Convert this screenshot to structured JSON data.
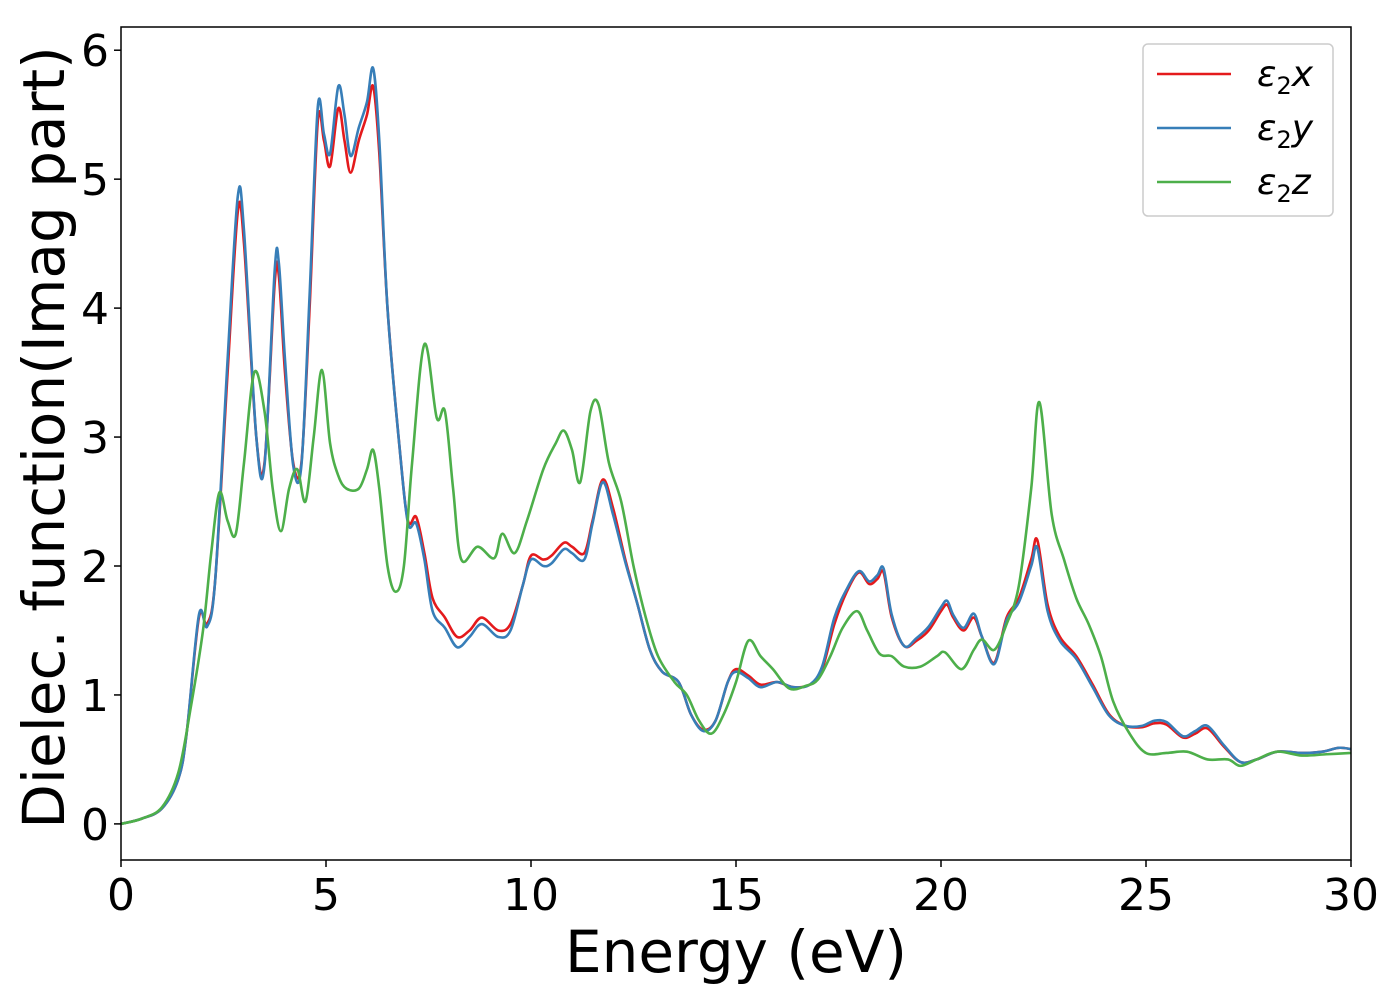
{
  "chart_data": {
    "type": "line",
    "xlabel": "Energy (eV)",
    "ylabel": "Dielec. function(Imag part)",
    "xlim": [
      0,
      30
    ],
    "ylim": [
      -0.28,
      6.18
    ],
    "xticks": [
      0,
      5,
      10,
      15,
      20,
      25,
      30
    ],
    "xtick_labels": [
      "0",
      "5",
      "10",
      "15",
      "20",
      "25",
      "30"
    ],
    "yticks": [
      0,
      1,
      2,
      3,
      4,
      5,
      6
    ],
    "ytick_labels": [
      "0",
      "1",
      "2",
      "3",
      "4",
      "5",
      "6"
    ],
    "grid": false,
    "legend_position": "top-right",
    "series": [
      {
        "name": "ε2x",
        "legend_base": "ε",
        "legend_sub": "2",
        "legend_tail": "x",
        "color": "#e41a1c",
        "points": [
          [
            0,
            0.0
          ],
          [
            0.5,
            0.04
          ],
          [
            1.0,
            0.12
          ],
          [
            1.4,
            0.35
          ],
          [
            1.6,
            0.7
          ],
          [
            1.9,
            1.6
          ],
          [
            2.1,
            1.55
          ],
          [
            2.3,
            1.9
          ],
          [
            2.6,
            3.5
          ],
          [
            2.85,
            4.75
          ],
          [
            3.0,
            4.5
          ],
          [
            3.3,
            3.0
          ],
          [
            3.5,
            2.8
          ],
          [
            3.75,
            4.2
          ],
          [
            3.85,
            4.25
          ],
          [
            4.0,
            3.5
          ],
          [
            4.2,
            2.8
          ],
          [
            4.4,
            2.8
          ],
          [
            4.6,
            4.0
          ],
          [
            4.8,
            5.45
          ],
          [
            4.95,
            5.3
          ],
          [
            5.1,
            5.1
          ],
          [
            5.3,
            5.55
          ],
          [
            5.45,
            5.3
          ],
          [
            5.6,
            5.05
          ],
          [
            5.8,
            5.3
          ],
          [
            6.0,
            5.5
          ],
          [
            6.15,
            5.72
          ],
          [
            6.3,
            5.2
          ],
          [
            6.5,
            4.0
          ],
          [
            6.8,
            2.9
          ],
          [
            7.0,
            2.35
          ],
          [
            7.2,
            2.38
          ],
          [
            7.4,
            2.1
          ],
          [
            7.6,
            1.75
          ],
          [
            7.9,
            1.6
          ],
          [
            8.2,
            1.45
          ],
          [
            8.5,
            1.5
          ],
          [
            8.8,
            1.6
          ],
          [
            9.2,
            1.5
          ],
          [
            9.5,
            1.55
          ],
          [
            9.8,
            1.85
          ],
          [
            10.0,
            2.08
          ],
          [
            10.3,
            2.05
          ],
          [
            10.5,
            2.08
          ],
          [
            10.8,
            2.18
          ],
          [
            11.0,
            2.15
          ],
          [
            11.3,
            2.1
          ],
          [
            11.5,
            2.35
          ],
          [
            11.75,
            2.67
          ],
          [
            12.0,
            2.45
          ],
          [
            12.3,
            2.05
          ],
          [
            12.6,
            1.7
          ],
          [
            12.9,
            1.35
          ],
          [
            13.2,
            1.18
          ],
          [
            13.6,
            1.1
          ],
          [
            13.9,
            0.85
          ],
          [
            14.2,
            0.73
          ],
          [
            14.5,
            0.8
          ],
          [
            14.8,
            1.1
          ],
          [
            15.0,
            1.2
          ],
          [
            15.3,
            1.15
          ],
          [
            15.6,
            1.08
          ],
          [
            16.0,
            1.1
          ],
          [
            16.4,
            1.06
          ],
          [
            16.8,
            1.08
          ],
          [
            17.1,
            1.2
          ],
          [
            17.4,
            1.55
          ],
          [
            17.7,
            1.8
          ],
          [
            18.0,
            1.95
          ],
          [
            18.25,
            1.86
          ],
          [
            18.45,
            1.9
          ],
          [
            18.6,
            1.95
          ],
          [
            18.8,
            1.6
          ],
          [
            19.1,
            1.38
          ],
          [
            19.4,
            1.42
          ],
          [
            19.7,
            1.5
          ],
          [
            20.0,
            1.65
          ],
          [
            20.15,
            1.7
          ],
          [
            20.3,
            1.6
          ],
          [
            20.55,
            1.5
          ],
          [
            20.8,
            1.6
          ],
          [
            21.0,
            1.45
          ],
          [
            21.3,
            1.25
          ],
          [
            21.6,
            1.6
          ],
          [
            21.9,
            1.75
          ],
          [
            22.2,
            2.05
          ],
          [
            22.35,
            2.2
          ],
          [
            22.6,
            1.7
          ],
          [
            22.9,
            1.45
          ],
          [
            23.3,
            1.3
          ],
          [
            23.7,
            1.08
          ],
          [
            24.1,
            0.85
          ],
          [
            24.5,
            0.76
          ],
          [
            24.9,
            0.75
          ],
          [
            25.2,
            0.78
          ],
          [
            25.5,
            0.77
          ],
          [
            25.9,
            0.67
          ],
          [
            26.2,
            0.7
          ],
          [
            26.5,
            0.74
          ],
          [
            26.9,
            0.6
          ],
          [
            27.3,
            0.48
          ],
          [
            27.7,
            0.5
          ],
          [
            28.2,
            0.56
          ],
          [
            28.8,
            0.55
          ],
          [
            29.3,
            0.56
          ],
          [
            29.7,
            0.59
          ],
          [
            30.0,
            0.58
          ]
        ]
      },
      {
        "name": "ε2y",
        "legend_base": "ε",
        "legend_sub": "2",
        "legend_tail": "y",
        "color": "#377eb8",
        "points": [
          [
            0,
            0.0
          ],
          [
            0.5,
            0.04
          ],
          [
            1.0,
            0.12
          ],
          [
            1.4,
            0.35
          ],
          [
            1.6,
            0.7
          ],
          [
            1.9,
            1.62
          ],
          [
            2.1,
            1.53
          ],
          [
            2.3,
            1.9
          ],
          [
            2.6,
            3.6
          ],
          [
            2.85,
            4.87
          ],
          [
            3.0,
            4.6
          ],
          [
            3.3,
            3.0
          ],
          [
            3.5,
            2.78
          ],
          [
            3.75,
            4.3
          ],
          [
            3.85,
            4.35
          ],
          [
            4.0,
            3.6
          ],
          [
            4.2,
            2.78
          ],
          [
            4.4,
            2.78
          ],
          [
            4.6,
            4.1
          ],
          [
            4.8,
            5.56
          ],
          [
            4.95,
            5.35
          ],
          [
            5.1,
            5.2
          ],
          [
            5.3,
            5.72
          ],
          [
            5.45,
            5.5
          ],
          [
            5.6,
            5.18
          ],
          [
            5.8,
            5.4
          ],
          [
            6.0,
            5.6
          ],
          [
            6.15,
            5.86
          ],
          [
            6.3,
            5.3
          ],
          [
            6.5,
            4.0
          ],
          [
            6.8,
            2.9
          ],
          [
            7.0,
            2.33
          ],
          [
            7.2,
            2.33
          ],
          [
            7.4,
            2.05
          ],
          [
            7.6,
            1.65
          ],
          [
            7.9,
            1.52
          ],
          [
            8.2,
            1.37
          ],
          [
            8.5,
            1.45
          ],
          [
            8.8,
            1.55
          ],
          [
            9.2,
            1.45
          ],
          [
            9.5,
            1.5
          ],
          [
            9.8,
            1.85
          ],
          [
            10.0,
            2.05
          ],
          [
            10.3,
            2.0
          ],
          [
            10.5,
            2.02
          ],
          [
            10.8,
            2.13
          ],
          [
            11.0,
            2.1
          ],
          [
            11.3,
            2.05
          ],
          [
            11.5,
            2.33
          ],
          [
            11.75,
            2.65
          ],
          [
            12.0,
            2.4
          ],
          [
            12.3,
            2.03
          ],
          [
            12.6,
            1.7
          ],
          [
            12.9,
            1.35
          ],
          [
            13.2,
            1.18
          ],
          [
            13.6,
            1.1
          ],
          [
            13.9,
            0.85
          ],
          [
            14.2,
            0.72
          ],
          [
            14.5,
            0.8
          ],
          [
            14.8,
            1.1
          ],
          [
            15.0,
            1.18
          ],
          [
            15.3,
            1.13
          ],
          [
            15.6,
            1.06
          ],
          [
            16.0,
            1.1
          ],
          [
            16.4,
            1.06
          ],
          [
            16.8,
            1.08
          ],
          [
            17.1,
            1.22
          ],
          [
            17.4,
            1.6
          ],
          [
            17.7,
            1.82
          ],
          [
            18.0,
            1.96
          ],
          [
            18.25,
            1.88
          ],
          [
            18.45,
            1.93
          ],
          [
            18.6,
            1.98
          ],
          [
            18.8,
            1.62
          ],
          [
            19.1,
            1.38
          ],
          [
            19.4,
            1.44
          ],
          [
            19.7,
            1.53
          ],
          [
            20.0,
            1.68
          ],
          [
            20.15,
            1.73
          ],
          [
            20.3,
            1.62
          ],
          [
            20.55,
            1.52
          ],
          [
            20.8,
            1.63
          ],
          [
            21.0,
            1.45
          ],
          [
            21.3,
            1.24
          ],
          [
            21.6,
            1.58
          ],
          [
            21.9,
            1.72
          ],
          [
            22.2,
            2.0
          ],
          [
            22.35,
            2.14
          ],
          [
            22.6,
            1.65
          ],
          [
            22.9,
            1.42
          ],
          [
            23.3,
            1.28
          ],
          [
            23.7,
            1.06
          ],
          [
            24.1,
            0.84
          ],
          [
            24.5,
            0.76
          ],
          [
            24.9,
            0.76
          ],
          [
            25.2,
            0.8
          ],
          [
            25.5,
            0.79
          ],
          [
            25.9,
            0.68
          ],
          [
            26.2,
            0.72
          ],
          [
            26.5,
            0.76
          ],
          [
            26.9,
            0.61
          ],
          [
            27.3,
            0.48
          ],
          [
            27.7,
            0.5
          ],
          [
            28.2,
            0.56
          ],
          [
            28.8,
            0.55
          ],
          [
            29.3,
            0.56
          ],
          [
            29.7,
            0.59
          ],
          [
            30.0,
            0.58
          ]
        ]
      },
      {
        "name": "ε2z",
        "legend_base": "ε",
        "legend_sub": "2",
        "legend_tail": "z",
        "color": "#4daf4a",
        "points": [
          [
            0,
            0.0
          ],
          [
            0.5,
            0.04
          ],
          [
            1.0,
            0.13
          ],
          [
            1.4,
            0.4
          ],
          [
            1.7,
            0.9
          ],
          [
            2.0,
            1.5
          ],
          [
            2.2,
            2.1
          ],
          [
            2.4,
            2.57
          ],
          [
            2.6,
            2.35
          ],
          [
            2.8,
            2.25
          ],
          [
            3.0,
            2.8
          ],
          [
            3.25,
            3.5
          ],
          [
            3.5,
            3.2
          ],
          [
            3.7,
            2.6
          ],
          [
            3.9,
            2.27
          ],
          [
            4.1,
            2.6
          ],
          [
            4.3,
            2.75
          ],
          [
            4.5,
            2.5
          ],
          [
            4.7,
            3.0
          ],
          [
            4.9,
            3.52
          ],
          [
            5.1,
            2.95
          ],
          [
            5.3,
            2.7
          ],
          [
            5.5,
            2.6
          ],
          [
            5.8,
            2.6
          ],
          [
            6.0,
            2.75
          ],
          [
            6.15,
            2.9
          ],
          [
            6.3,
            2.6
          ],
          [
            6.5,
            2.0
          ],
          [
            6.7,
            1.8
          ],
          [
            6.9,
            2.0
          ],
          [
            7.1,
            2.8
          ],
          [
            7.4,
            3.72
          ],
          [
            7.7,
            3.15
          ],
          [
            7.9,
            3.2
          ],
          [
            8.1,
            2.6
          ],
          [
            8.3,
            2.05
          ],
          [
            8.7,
            2.15
          ],
          [
            9.1,
            2.06
          ],
          [
            9.3,
            2.25
          ],
          [
            9.6,
            2.1
          ],
          [
            9.9,
            2.35
          ],
          [
            10.3,
            2.75
          ],
          [
            10.6,
            2.95
          ],
          [
            10.8,
            3.05
          ],
          [
            11.0,
            2.9
          ],
          [
            11.2,
            2.65
          ],
          [
            11.45,
            3.2
          ],
          [
            11.65,
            3.25
          ],
          [
            11.9,
            2.8
          ],
          [
            12.2,
            2.5
          ],
          [
            12.5,
            2.0
          ],
          [
            12.8,
            1.6
          ],
          [
            13.1,
            1.3
          ],
          [
            13.5,
            1.1
          ],
          [
            13.8,
            1.0
          ],
          [
            14.1,
            0.8
          ],
          [
            14.4,
            0.7
          ],
          [
            14.7,
            0.85
          ],
          [
            15.0,
            1.1
          ],
          [
            15.3,
            1.42
          ],
          [
            15.6,
            1.3
          ],
          [
            15.9,
            1.2
          ],
          [
            16.3,
            1.05
          ],
          [
            16.7,
            1.07
          ],
          [
            17.0,
            1.12
          ],
          [
            17.3,
            1.3
          ],
          [
            17.6,
            1.52
          ],
          [
            17.95,
            1.65
          ],
          [
            18.2,
            1.5
          ],
          [
            18.5,
            1.32
          ],
          [
            18.8,
            1.3
          ],
          [
            19.1,
            1.22
          ],
          [
            19.5,
            1.22
          ],
          [
            19.9,
            1.3
          ],
          [
            20.1,
            1.33
          ],
          [
            20.5,
            1.2
          ],
          [
            20.8,
            1.35
          ],
          [
            21.0,
            1.43
          ],
          [
            21.3,
            1.35
          ],
          [
            21.6,
            1.55
          ],
          [
            21.9,
            1.85
          ],
          [
            22.2,
            2.6
          ],
          [
            22.4,
            3.27
          ],
          [
            22.7,
            2.4
          ],
          [
            23.0,
            2.05
          ],
          [
            23.3,
            1.75
          ],
          [
            23.6,
            1.55
          ],
          [
            23.9,
            1.3
          ],
          [
            24.2,
            0.95
          ],
          [
            24.6,
            0.7
          ],
          [
            25.0,
            0.55
          ],
          [
            25.5,
            0.55
          ],
          [
            26.0,
            0.56
          ],
          [
            26.5,
            0.5
          ],
          [
            27.0,
            0.5
          ],
          [
            27.3,
            0.45
          ],
          [
            27.7,
            0.5
          ],
          [
            28.2,
            0.56
          ],
          [
            28.8,
            0.53
          ],
          [
            29.4,
            0.54
          ],
          [
            30.0,
            0.55
          ]
        ]
      }
    ]
  }
}
